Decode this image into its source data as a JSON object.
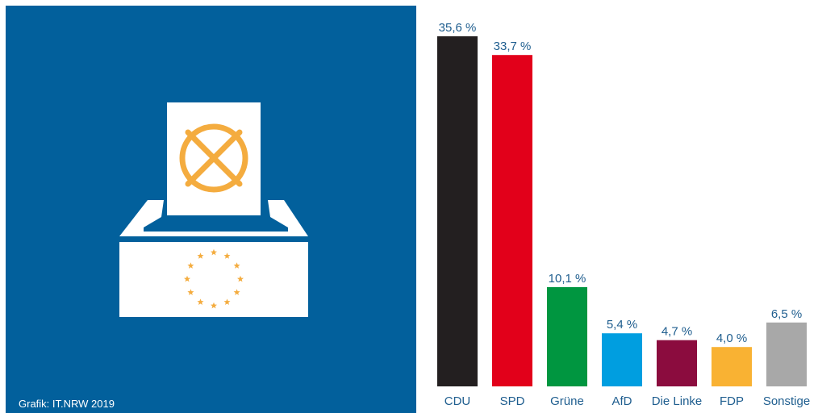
{
  "credit": "Grafik: IT.NRW 2019",
  "colors": {
    "panel_bg": "#02609c",
    "label_text": "#1f5e8f",
    "ballot_accent": "#f4ac3f"
  },
  "icons": {
    "ballot_box": "ballot-box-icon",
    "ballot_paper": "ballot-paper-icon",
    "vote_cross": "vote-cross-icon",
    "eu_stars": "eu-stars-icon"
  },
  "chart_data": {
    "type": "bar",
    "categories": [
      "CDU",
      "SPD",
      "Grüne",
      "AfD",
      "Die Linke",
      "FDP",
      "Sonstige"
    ],
    "values": [
      35.6,
      33.7,
      10.1,
      5.4,
      4.7,
      4.0,
      6.5
    ],
    "value_labels": [
      "35,6 %",
      "33,7 %",
      "10,1 %",
      "5,4 %",
      "4,7 %",
      "4,0 %",
      "6,5 %"
    ],
    "colors": [
      "#231f20",
      "#e2001a",
      "#009640",
      "#009ee0",
      "#8b0c3e",
      "#f9b233",
      "#a8a8a8"
    ],
    "ylim": [
      0,
      35.6
    ],
    "grid": false,
    "legend": false
  }
}
